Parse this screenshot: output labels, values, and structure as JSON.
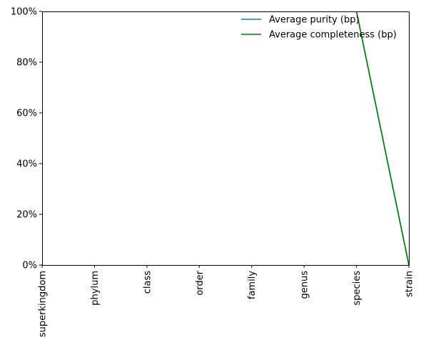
{
  "chart_data": {
    "type": "line",
    "categories": [
      "superkingdom",
      "phylum",
      "class",
      "order",
      "family",
      "genus",
      "species",
      "strain"
    ],
    "series": [
      {
        "name": "Average purity (bp)",
        "color": "#1f77b4",
        "values": [
          null,
          null,
          null,
          null,
          null,
          null,
          100,
          0
        ]
      },
      {
        "name": "Average completeness (bp)",
        "color": "#008000",
        "values": [
          null,
          null,
          null,
          null,
          null,
          null,
          100,
          0
        ]
      }
    ],
    "ylim": [
      0,
      100
    ],
    "yticks": [
      0,
      20,
      40,
      60,
      80,
      100
    ],
    "ytick_labels": [
      "0%",
      "20%",
      "40%",
      "60%",
      "80%",
      "100%"
    ],
    "grid": false,
    "legend_position": "top-right"
  }
}
